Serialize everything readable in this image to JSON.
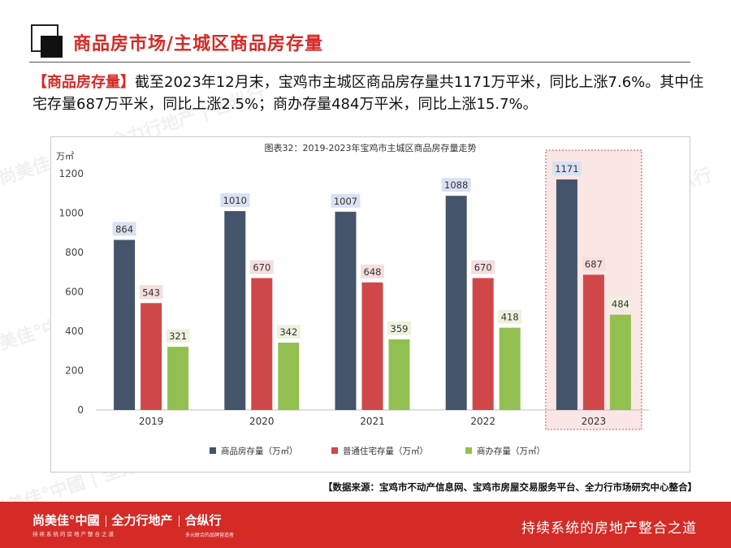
{
  "header": {
    "title": "商品房市场/主城区商品房存量"
  },
  "summary": {
    "tag": "【商品房存量】",
    "text": "截至2023年12月末，宝鸡市主城区商品房存量共1171万平米，同比上涨7.6%。其中住宅存量687万平米，同比上涨2.5%；商办存量484万平米，同比上涨15.7%。"
  },
  "chart_data": {
    "type": "bar",
    "title": "图表32：2019-2023年宝鸡市主城区商品房存量走势",
    "yunit": "万㎡",
    "ylim": [
      0,
      1200
    ],
    "yticks": [
      0,
      200,
      400,
      600,
      800,
      1000,
      1200
    ],
    "categories": [
      "2019",
      "2020",
      "2021",
      "2022",
      "2023"
    ],
    "highlight_category": "2023",
    "legend_position": "bottom",
    "series": [
      {
        "name": "商品房存量（万㎡）",
        "color": "#44546a",
        "label_bg": "#d9e1f2",
        "values": [
          864,
          1010,
          1007,
          1088,
          1171
        ]
      },
      {
        "name": "普通住宅存量（万㎡）",
        "color": "#d0474a",
        "label_bg": "#f6dede",
        "values": [
          543,
          670,
          648,
          670,
          687
        ]
      },
      {
        "name": "商办存量（万㎡）",
        "color": "#92c050",
        "label_bg": "#eef1dd",
        "values": [
          321,
          342,
          359,
          418,
          484
        ]
      }
    ]
  },
  "source": "【数据来源：宝鸡市不动产信息网、宝鸡市房屋交易服务平台、全力行市场研究中心整合】",
  "footer": {
    "brand1": "尚美佳°中國",
    "brand2": "全力行地产",
    "brand3": "合纵行",
    "tagline1": "持续系统的房地产整合之道",
    "tagline2": "多元联合的品牌营造者",
    "slogan": "持续系统的房地产整合之道"
  },
  "watermarks": [
    "尚美佳°中國 | 全力行地产 | 合纵行"
  ],
  "colors": {
    "accent": "#d42b27",
    "highlight_fill": "#fbe6e6",
    "highlight_border": "#d44a4a"
  }
}
